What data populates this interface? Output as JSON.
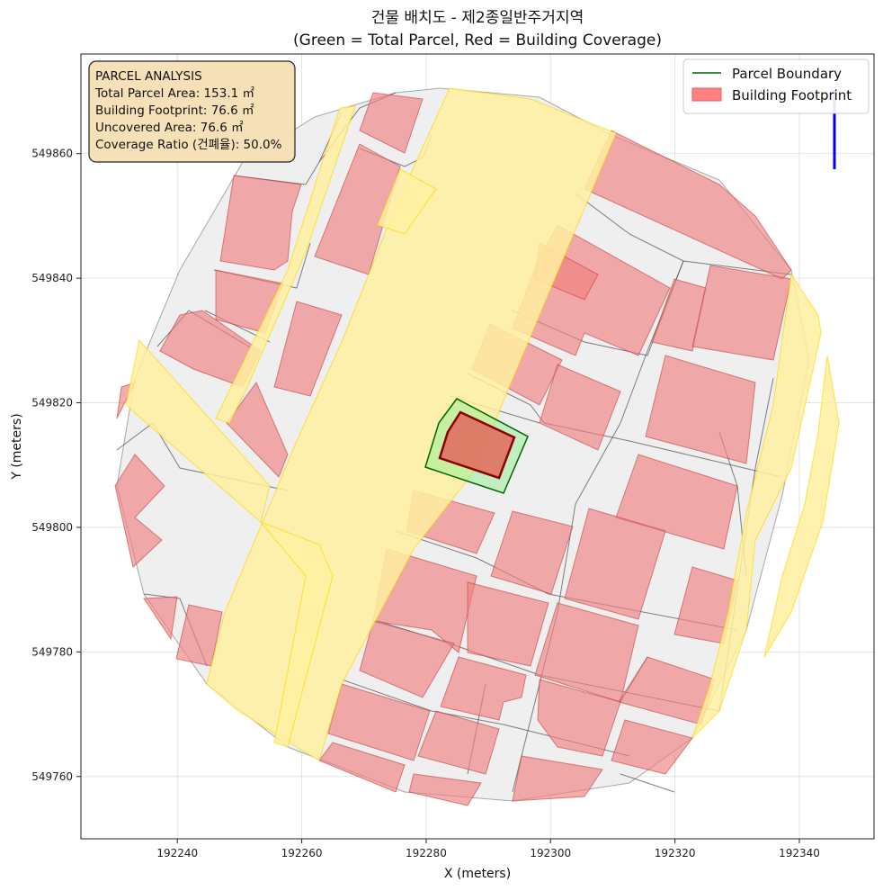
{
  "title_line1": "건물 배치도 - 제2종일반주거지역",
  "title_line2": "(Green = Total Parcel, Red = Building Coverage)",
  "xlabel": "X (meters)",
  "ylabel": "Y (meters)",
  "x_ticks": [
    "192240",
    "192260",
    "192280",
    "192300",
    "192320",
    "192340"
  ],
  "y_ticks": [
    "549860",
    "549840",
    "549820",
    "549800",
    "549780",
    "549760"
  ],
  "info_box": {
    "title": "PARCEL ANALYSIS",
    "lines": [
      "Total Parcel Area: 153.1 ㎡",
      "Building Footprint: 76.6 ㎡",
      "Uncovered Area: 76.6 ㎡",
      "Coverage Ratio (건폐율): 50.0%"
    ]
  },
  "legend": {
    "parcel": "Parcel Boundary",
    "building": "Building Footprint"
  },
  "north_label": "N",
  "colors": {
    "parcel_edge": "#006400",
    "parcel_fill": "#90ee90",
    "building_fill": "#f08080",
    "building_edge": "#8b0000",
    "road_fill": "#fff0a0",
    "road_edge": "#ffd700",
    "lot_fill": "#efefef",
    "lot_edge": "#666666",
    "info_bg": "#f5deb3",
    "north_arrow": "#0000ff"
  },
  "chart_data": {
    "type": "map",
    "x_range": [
      192224.5,
      192352
    ],
    "y_range": [
      549750,
      549876
    ],
    "grid": true,
    "legend_position": "top-right",
    "info_box_position": "top-left",
    "subject_parcel": {
      "total_area_m2": 153.1,
      "building_footprint_m2": 76.6,
      "uncovered_area_m2": 76.6,
      "coverage_ratio_pct": 50.0
    }
  }
}
